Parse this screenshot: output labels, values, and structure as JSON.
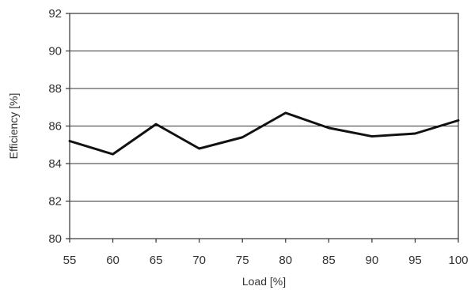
{
  "chart_data": {
    "type": "line",
    "title": "",
    "xlabel": "Load [%]",
    "ylabel": "Efficiency [%]",
    "x": [
      55,
      60,
      65,
      70,
      75,
      80,
      85,
      90,
      95,
      100
    ],
    "xlim": [
      55,
      100
    ],
    "ylim": [
      80,
      92
    ],
    "x_ticks": [
      "55",
      "60",
      "65",
      "70",
      "75",
      "80",
      "85",
      "90",
      "95",
      "100"
    ],
    "y_ticks": [
      "80",
      "82",
      "84",
      "86",
      "88",
      "90",
      "92"
    ],
    "grid": "horizontal",
    "legend": "none",
    "series": [
      {
        "values": [
          85.2,
          84.5,
          86.1,
          84.8,
          85.4,
          86.7,
          85.9,
          85.45,
          85.6,
          86.3
        ]
      }
    ],
    "line_color": "#111111"
  }
}
